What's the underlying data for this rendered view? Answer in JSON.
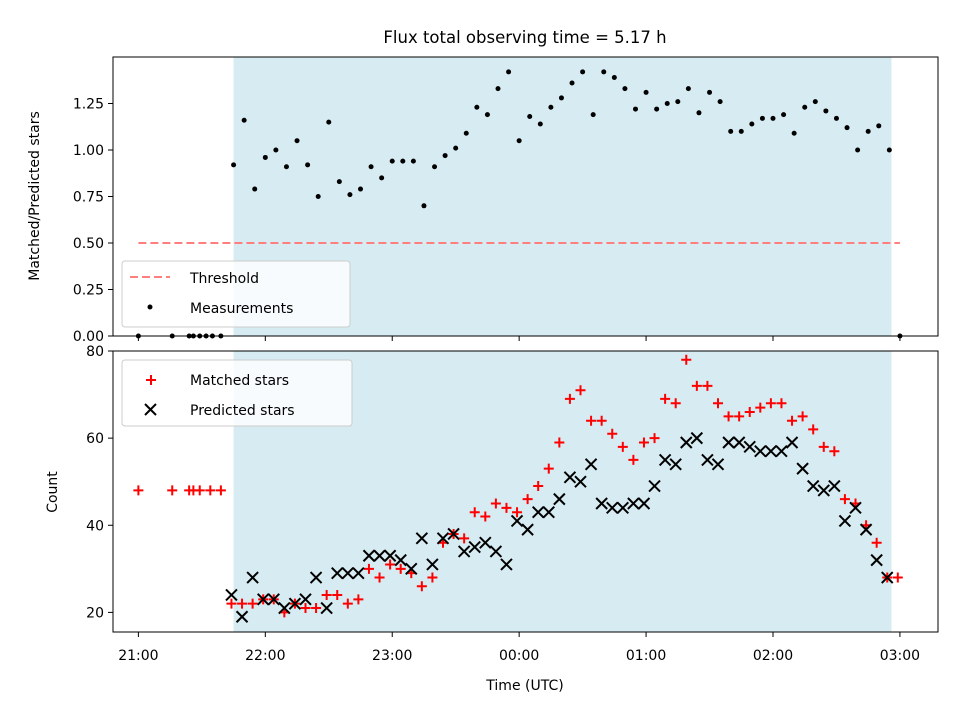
{
  "title": "Flux total observing time = 5.17 h",
  "colors": {
    "shade": "#add8e6",
    "threshold": "#ff7f7f",
    "measurement": "#000000",
    "matched": "#ff0000",
    "predicted": "#000000"
  },
  "chart_data": [
    {
      "type": "scatter",
      "panel": "top",
      "title": "Flux total observing time = 5.17 h",
      "xlabel": "",
      "ylabel": "Matched/Predicted stars",
      "xlim": [
        "20:48",
        "03:18"
      ],
      "ylim": [
        0,
        1.5
      ],
      "yticks": [
        "0.00",
        "0.25",
        "0.50",
        "0.75",
        "1.00",
        "1.25"
      ],
      "shaded_interval": [
        "21:45",
        "02:56"
      ],
      "legend_position": "lower left",
      "series": [
        {
          "name": "Threshold",
          "kind": "line",
          "style": "dashed",
          "x": [
            "21:00",
            "03:00"
          ],
          "y": [
            0.5,
            0.5
          ]
        },
        {
          "name": "Measurements",
          "kind": "scatter",
          "marker": "dot",
          "x": [
            "21:00",
            "21:16",
            "21:24",
            "21:26",
            "21:29",
            "21:32",
            "21:35",
            "21:39",
            "21:45",
            "21:50",
            "21:55",
            "22:00",
            "22:05",
            "22:10",
            "22:15",
            "22:20",
            "22:25",
            "22:30",
            "22:35",
            "22:40",
            "22:45",
            "22:50",
            "22:55",
            "23:00",
            "23:05",
            "23:10",
            "23:15",
            "23:20",
            "23:25",
            "23:30",
            "23:35",
            "23:40",
            "23:45",
            "23:50",
            "23:55",
            "00:00",
            "00:05",
            "00:10",
            "00:15",
            "00:20",
            "00:25",
            "00:30",
            "00:35",
            "00:40",
            "00:45",
            "00:50",
            "00:55",
            "01:00",
            "01:05",
            "01:10",
            "01:15",
            "01:20",
            "01:25",
            "01:30",
            "01:35",
            "01:40",
            "01:45",
            "01:50",
            "01:55",
            "02:00",
            "02:05",
            "02:10",
            "02:15",
            "02:20",
            "02:25",
            "02:30",
            "02:35",
            "02:40",
            "02:45",
            "02:50",
            "02:55",
            "03:00"
          ],
          "y": [
            0,
            0,
            0,
            0,
            0,
            0,
            0,
            0,
            0.92,
            1.16,
            0.79,
            0.96,
            1.0,
            0.91,
            1.05,
            0.92,
            0.75,
            1.15,
            0.83,
            0.76,
            0.79,
            0.91,
            0.85,
            0.94,
            0.94,
            0.94,
            0.7,
            0.91,
            0.97,
            1.01,
            1.09,
            1.23,
            1.19,
            1.33,
            1.42,
            1.05,
            1.18,
            1.14,
            1.23,
            1.28,
            1.36,
            1.42,
            1.19,
            1.42,
            1.39,
            1.33,
            1.22,
            1.31,
            1.22,
            1.25,
            1.26,
            1.33,
            1.2,
            1.31,
            1.26,
            1.1,
            1.1,
            1.14,
            1.17,
            1.17,
            1.19,
            1.09,
            1.23,
            1.26,
            1.21,
            1.17,
            1.12,
            1.0,
            1.1,
            1.13,
            1.0,
            0
          ]
        }
      ]
    },
    {
      "type": "scatter",
      "panel": "bottom",
      "xlabel": "Time (UTC)",
      "ylabel": "Count",
      "xlim": [
        "20:48",
        "03:18"
      ],
      "ylim": [
        15.5,
        80
      ],
      "xticks": [
        "21:00",
        "22:00",
        "23:00",
        "00:00",
        "01:00",
        "02:00",
        "03:00"
      ],
      "yticks": [
        20,
        40,
        60,
        80
      ],
      "shaded_interval": [
        "21:45",
        "02:56"
      ],
      "legend_position": "upper left",
      "series": [
        {
          "name": "Matched stars",
          "marker": "plus",
          "x": [
            "21:00",
            "21:16",
            "21:24",
            "21:26",
            "21:29",
            "21:34",
            "21:39",
            "21:44",
            "21:49",
            "21:54",
            "21:59",
            "22:04",
            "22:09",
            "22:14",
            "22:19",
            "22:24",
            "22:29",
            "22:34",
            "22:39",
            "22:44",
            "22:49",
            "22:54",
            "22:59",
            "23:04",
            "23:09",
            "23:14",
            "23:19",
            "23:24",
            "23:29",
            "23:34",
            "23:39",
            "23:44",
            "23:49",
            "23:54",
            "23:59",
            "00:04",
            "00:09",
            "00:14",
            "00:19",
            "00:24",
            "00:29",
            "00:34",
            "00:39",
            "00:44",
            "00:49",
            "00:54",
            "00:59",
            "01:04",
            "01:09",
            "01:14",
            "01:19",
            "01:24",
            "01:29",
            "01:34",
            "01:39",
            "01:44",
            "01:49",
            "01:54",
            "01:59",
            "02:04",
            "02:09",
            "02:14",
            "02:19",
            "02:24",
            "02:29",
            "02:34",
            "02:39",
            "02:44",
            "02:49",
            "02:54",
            "02:59"
          ],
          "y": [
            48,
            48,
            48,
            48,
            48,
            48,
            48,
            22,
            22,
            22,
            23,
            23,
            20,
            22,
            21,
            21,
            24,
            24,
            22,
            23,
            30,
            28,
            31,
            30,
            29,
            26,
            28,
            36,
            38,
            37,
            43,
            42,
            45,
            44,
            43,
            46,
            49,
            53,
            59,
            69,
            71,
            64,
            64,
            61,
            58,
            55,
            59,
            60,
            69,
            68,
            78,
            72,
            72,
            68,
            65,
            65,
            66,
            67,
            68,
            68,
            64,
            65,
            62,
            58,
            57,
            46,
            45,
            40,
            36,
            28,
            28
          ]
        },
        {
          "name": "Predicted stars",
          "marker": "x",
          "x": [
            "21:44",
            "21:49",
            "21:54",
            "21:59",
            "22:04",
            "22:09",
            "22:14",
            "22:19",
            "22:24",
            "22:29",
            "22:34",
            "22:39",
            "22:44",
            "22:49",
            "22:54",
            "22:59",
            "23:04",
            "23:09",
            "23:14",
            "23:19",
            "23:24",
            "23:29",
            "23:34",
            "23:39",
            "23:44",
            "23:49",
            "23:54",
            "23:59",
            "00:04",
            "00:09",
            "00:14",
            "00:19",
            "00:24",
            "00:29",
            "00:34",
            "00:39",
            "00:44",
            "00:49",
            "00:54",
            "00:59",
            "01:04",
            "01:09",
            "01:14",
            "01:19",
            "01:24",
            "01:29",
            "01:34",
            "01:39",
            "01:44",
            "01:49",
            "01:54",
            "01:59",
            "02:04",
            "02:09",
            "02:14",
            "02:19",
            "02:24",
            "02:29",
            "02:34",
            "02:39",
            "02:44",
            "02:49",
            "02:54"
          ],
          "y": [
            24,
            19,
            28,
            23,
            23,
            21,
            22,
            23,
            28,
            21,
            29,
            29,
            29,
            33,
            33,
            33,
            32,
            30,
            37,
            31,
            37,
            38,
            34,
            35,
            36,
            34,
            31,
            41,
            39,
            43,
            43,
            46,
            51,
            50,
            54,
            45,
            44,
            44,
            45,
            45,
            49,
            55,
            54,
            59,
            60,
            55,
            54,
            59,
            59,
            58,
            57,
            57,
            57,
            59,
            53,
            49,
            48,
            49,
            41,
            44,
            39,
            32,
            28
          ]
        }
      ]
    }
  ]
}
